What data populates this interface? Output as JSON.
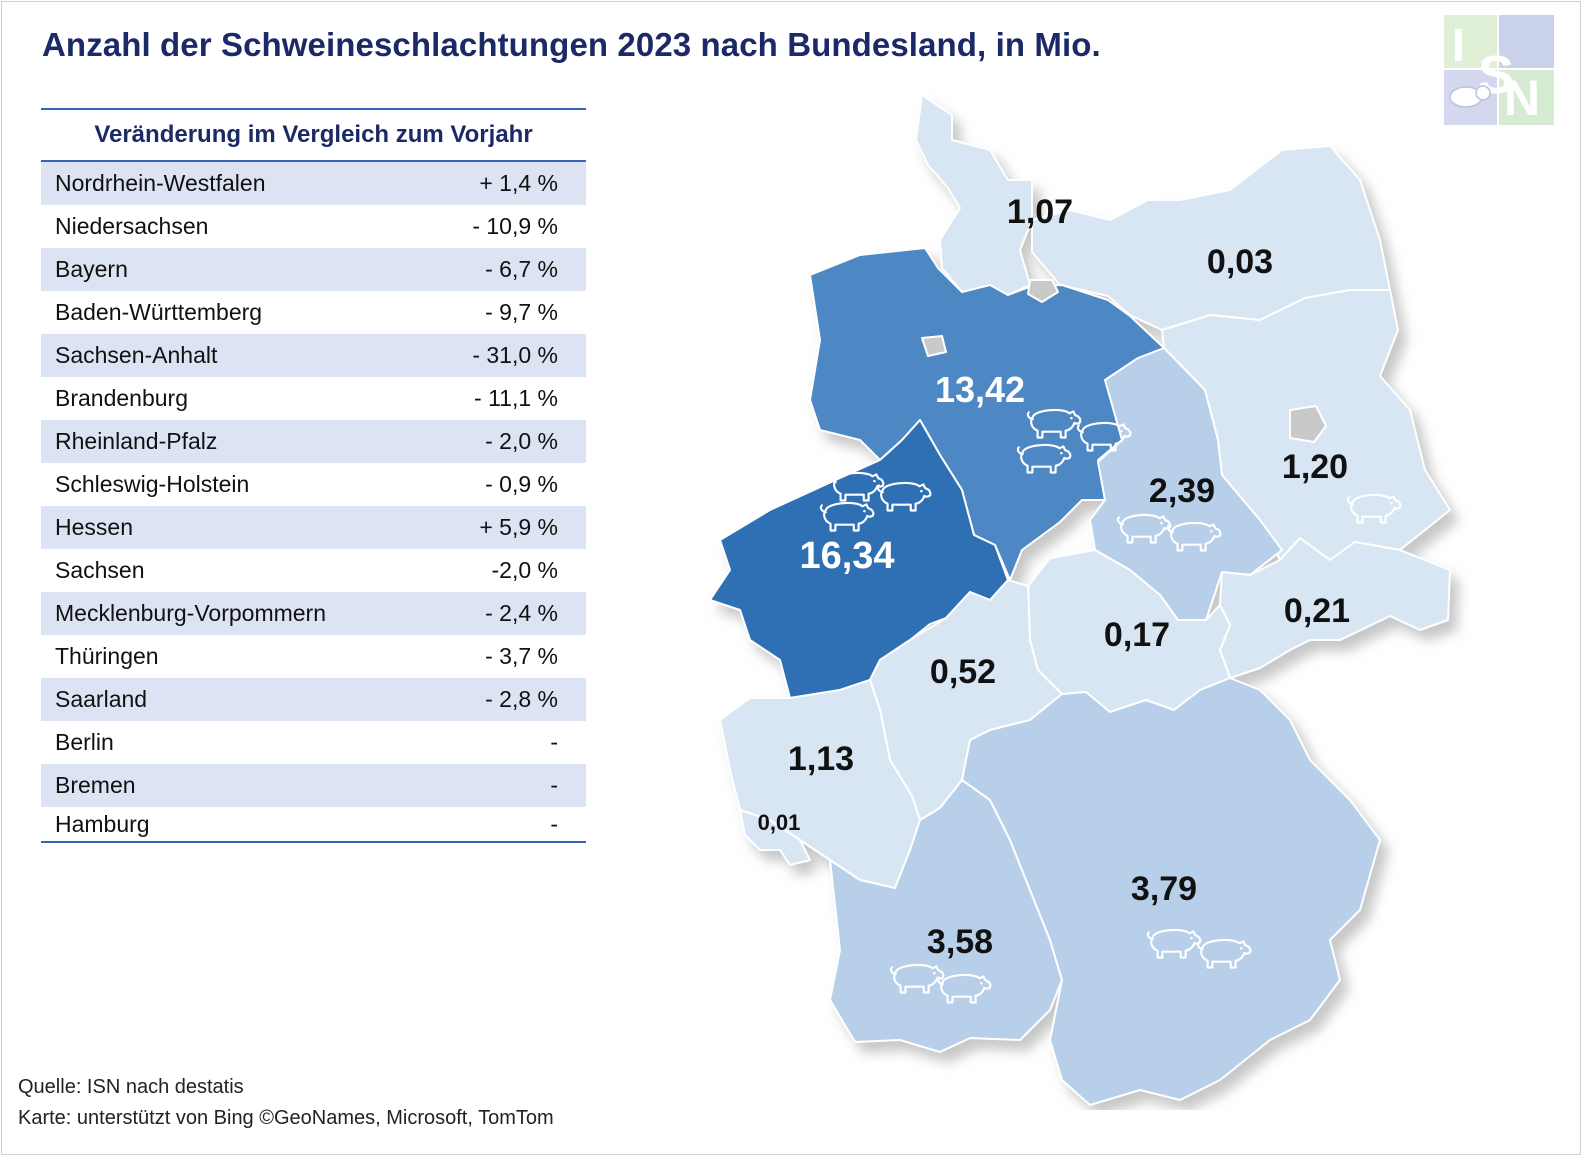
{
  "title": "Anzahl der Schweineschlachtungen 2023 nach Bundesland, in Mio.",
  "logo": {
    "text": "ISN",
    "icon": "pig-icon"
  },
  "table": {
    "header": "Veränderung im Vergleich zum Vorjahr",
    "rows": [
      {
        "state": "Nordrhein-Westfalen",
        "change": "+ 1,4 %"
      },
      {
        "state": "Niedersachsen",
        "change": "- 10,9 %"
      },
      {
        "state": "Bayern",
        "change": "- 6,7 %"
      },
      {
        "state": "Baden-Württemberg",
        "change": "- 9,7 %"
      },
      {
        "state": "Sachsen-Anhalt",
        "change": "- 31,0 %"
      },
      {
        "state": "Brandenburg",
        "change": "- 11,1 %"
      },
      {
        "state": "Rheinland-Pfalz",
        "change": "- 2,0 %"
      },
      {
        "state": "Schleswig-Holstein",
        "change": "- 0,9 %"
      },
      {
        "state": "Hessen",
        "change": "+ 5,9 %"
      },
      {
        "state": "Sachsen",
        "change": "-2,0 %"
      },
      {
        "state": "Mecklenburg-Vorpommern",
        "change": "- 2,4 %"
      },
      {
        "state": "Thüringen",
        "change": "- 3,7 %"
      },
      {
        "state": "Saarland",
        "change": "- 2,8 %"
      },
      {
        "state": "Berlin",
        "change": "-"
      },
      {
        "state": "Bremen",
        "change": "-"
      },
      {
        "state": "Hamburg",
        "change": "-"
      }
    ]
  },
  "map": {
    "colors": {
      "dark": "#2f70b3",
      "medium": "#4d88c4",
      "light": "#b7cfe8",
      "pale": "#d8e5f3",
      "city": "#c9c9c9",
      "border": "#ffffff"
    },
    "labels": [
      {
        "id": "schleswig-holstein",
        "value": "1,07",
        "pigs": 0
      },
      {
        "id": "mecklenburg-vorpommern",
        "value": "0,03",
        "pigs": 0
      },
      {
        "id": "niedersachsen",
        "value": "13,42",
        "pigs": 3
      },
      {
        "id": "brandenburg",
        "value": "1,20",
        "pigs": 1
      },
      {
        "id": "sachsen-anhalt",
        "value": "2,39",
        "pigs": 2
      },
      {
        "id": "nordrhein-westfalen",
        "value": "16,34",
        "pigs": 3
      },
      {
        "id": "sachsen",
        "value": "0,21",
        "pigs": 0
      },
      {
        "id": "thueringen",
        "value": "0,17",
        "pigs": 0
      },
      {
        "id": "hessen",
        "value": "0,52",
        "pigs": 0
      },
      {
        "id": "rheinland-pfalz",
        "value": "1,13",
        "pigs": 0
      },
      {
        "id": "saarland",
        "value": "0,01",
        "pigs": 0
      },
      {
        "id": "bayern",
        "value": "3,79",
        "pigs": 2
      },
      {
        "id": "baden-wuerttemberg",
        "value": "3,58",
        "pigs": 2
      }
    ]
  },
  "source": {
    "line1": "Quelle: ISN nach destatis",
    "line2": "Karte: unterstützt von Bing ©GeoNames, Microsoft, TomTom"
  }
}
